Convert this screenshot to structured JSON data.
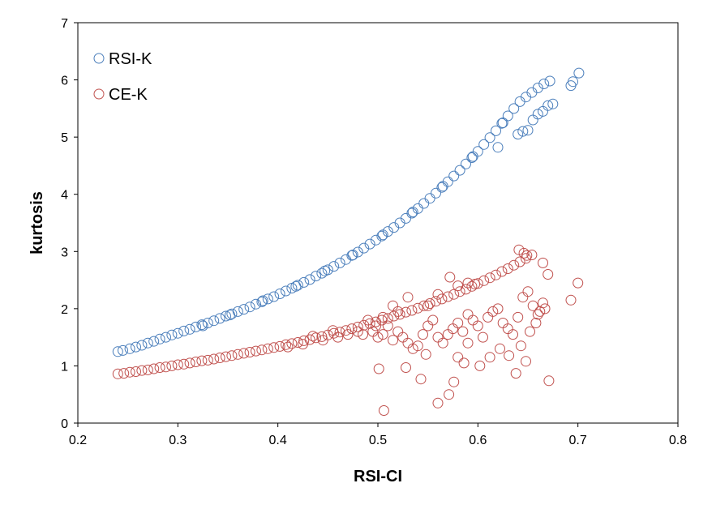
{
  "chart_data": {
    "type": "scatter",
    "title": "",
    "xlabel": "RSI-CI",
    "ylabel": "kurtosis",
    "xlim": [
      0.2,
      0.8
    ],
    "ylim": [
      0,
      7
    ],
    "xticks": [
      "0.2",
      "0.3",
      "0.4",
      "0.5",
      "0.6",
      "0.7",
      "0.8"
    ],
    "yticks": [
      "0",
      "1",
      "2",
      "3",
      "4",
      "5",
      "6",
      "7"
    ],
    "grid": false,
    "legend_position": "top-left",
    "series": [
      {
        "name": "RSI-K",
        "color": "#4a7ebb",
        "marker": "open-circle",
        "points": [
          [
            0.24,
            1.25
          ],
          [
            0.245,
            1.27
          ],
          [
            0.252,
            1.3
          ],
          [
            0.258,
            1.33
          ],
          [
            0.264,
            1.36
          ],
          [
            0.27,
            1.4
          ],
          [
            0.276,
            1.43
          ],
          [
            0.282,
            1.47
          ],
          [
            0.288,
            1.5
          ],
          [
            0.294,
            1.54
          ],
          [
            0.3,
            1.57
          ],
          [
            0.306,
            1.61
          ],
          [
            0.312,
            1.64
          ],
          [
            0.318,
            1.68
          ],
          [
            0.324,
            1.72
          ],
          [
            0.33,
            1.75
          ],
          [
            0.336,
            1.79
          ],
          [
            0.342,
            1.83
          ],
          [
            0.348,
            1.87
          ],
          [
            0.354,
            1.91
          ],
          [
            0.36,
            1.95
          ],
          [
            0.366,
            1.99
          ],
          [
            0.372,
            2.03
          ],
          [
            0.378,
            2.08
          ],
          [
            0.384,
            2.12
          ],
          [
            0.39,
            2.17
          ],
          [
            0.396,
            2.21
          ],
          [
            0.402,
            2.26
          ],
          [
            0.408,
            2.31
          ],
          [
            0.414,
            2.36
          ],
          [
            0.42,
            2.41
          ],
          [
            0.426,
            2.46
          ],
          [
            0.432,
            2.51
          ],
          [
            0.438,
            2.57
          ],
          [
            0.444,
            2.62
          ],
          [
            0.45,
            2.68
          ],
          [
            0.456,
            2.74
          ],
          [
            0.462,
            2.8
          ],
          [
            0.468,
            2.86
          ],
          [
            0.474,
            2.93
          ],
          [
            0.48,
            2.99
          ],
          [
            0.486,
            3.06
          ],
          [
            0.492,
            3.13
          ],
          [
            0.498,
            3.2
          ],
          [
            0.504,
            3.27
          ],
          [
            0.51,
            3.35
          ],
          [
            0.516,
            3.42
          ],
          [
            0.522,
            3.5
          ],
          [
            0.528,
            3.58
          ],
          [
            0.534,
            3.67
          ],
          [
            0.54,
            3.75
          ],
          [
            0.546,
            3.84
          ],
          [
            0.552,
            3.93
          ],
          [
            0.558,
            4.02
          ],
          [
            0.564,
            4.12
          ],
          [
            0.57,
            4.22
          ],
          [
            0.576,
            4.32
          ],
          [
            0.582,
            4.42
          ],
          [
            0.588,
            4.53
          ],
          [
            0.594,
            4.64
          ],
          [
            0.6,
            4.75
          ],
          [
            0.606,
            4.87
          ],
          [
            0.612,
            4.99
          ],
          [
            0.618,
            5.11
          ],
          [
            0.624,
            5.24
          ],
          [
            0.63,
            5.37
          ],
          [
            0.636,
            5.5
          ],
          [
            0.642,
            5.62
          ],
          [
            0.648,
            5.7
          ],
          [
            0.654,
            5.78
          ],
          [
            0.66,
            5.86
          ],
          [
            0.666,
            5.93
          ],
          [
            0.672,
            5.98
          ],
          [
            0.693,
            5.9
          ],
          [
            0.695,
            5.97
          ],
          [
            0.701,
            6.12
          ],
          [
            0.325,
            1.7
          ],
          [
            0.352,
            1.89
          ],
          [
            0.385,
            2.14
          ],
          [
            0.418,
            2.39
          ],
          [
            0.447,
            2.66
          ],
          [
            0.475,
            2.94
          ],
          [
            0.505,
            3.29
          ],
          [
            0.535,
            3.69
          ],
          [
            0.565,
            4.14
          ],
          [
            0.595,
            4.66
          ],
          [
            0.625,
            5.25
          ],
          [
            0.655,
            5.3
          ],
          [
            0.66,
            5.4
          ],
          [
            0.665,
            5.45
          ],
          [
            0.67,
            5.55
          ],
          [
            0.675,
            5.58
          ],
          [
            0.64,
            5.05
          ],
          [
            0.645,
            5.1
          ],
          [
            0.65,
            5.12
          ],
          [
            0.62,
            4.82
          ]
        ]
      },
      {
        "name": "CE-K",
        "color": "#c0504d",
        "marker": "open-circle",
        "points": [
          [
            0.24,
            0.86
          ],
          [
            0.246,
            0.87
          ],
          [
            0.252,
            0.89
          ],
          [
            0.258,
            0.9
          ],
          [
            0.264,
            0.92
          ],
          [
            0.27,
            0.93
          ],
          [
            0.276,
            0.95
          ],
          [
            0.282,
            0.97
          ],
          [
            0.288,
            0.98
          ],
          [
            0.294,
            1.0
          ],
          [
            0.3,
            1.02
          ],
          [
            0.306,
            1.03
          ],
          [
            0.312,
            1.05
          ],
          [
            0.318,
            1.07
          ],
          [
            0.324,
            1.09
          ],
          [
            0.33,
            1.1
          ],
          [
            0.336,
            1.12
          ],
          [
            0.342,
            1.14
          ],
          [
            0.348,
            1.16
          ],
          [
            0.354,
            1.18
          ],
          [
            0.36,
            1.2
          ],
          [
            0.366,
            1.22
          ],
          [
            0.372,
            1.24
          ],
          [
            0.378,
            1.26
          ],
          [
            0.384,
            1.28
          ],
          [
            0.39,
            1.3
          ],
          [
            0.396,
            1.32
          ],
          [
            0.402,
            1.34
          ],
          [
            0.408,
            1.37
          ],
          [
            0.414,
            1.39
          ],
          [
            0.42,
            1.41
          ],
          [
            0.426,
            1.44
          ],
          [
            0.432,
            1.46
          ],
          [
            0.438,
            1.49
          ],
          [
            0.444,
            1.51
          ],
          [
            0.45,
            1.54
          ],
          [
            0.456,
            1.57
          ],
          [
            0.462,
            1.59
          ],
          [
            0.468,
            1.62
          ],
          [
            0.474,
            1.65
          ],
          [
            0.48,
            1.68
          ],
          [
            0.486,
            1.71
          ],
          [
            0.492,
            1.74
          ],
          [
            0.498,
            1.77
          ],
          [
            0.504,
            1.8
          ],
          [
            0.51,
            1.83
          ],
          [
            0.516,
            1.87
          ],
          [
            0.522,
            1.9
          ],
          [
            0.528,
            1.94
          ],
          [
            0.534,
            1.97
          ],
          [
            0.54,
            2.01
          ],
          [
            0.546,
            2.05
          ],
          [
            0.552,
            2.09
          ],
          [
            0.558,
            2.13
          ],
          [
            0.564,
            2.17
          ],
          [
            0.57,
            2.21
          ],
          [
            0.576,
            2.25
          ],
          [
            0.582,
            2.3
          ],
          [
            0.588,
            2.34
          ],
          [
            0.594,
            2.39
          ],
          [
            0.6,
            2.44
          ],
          [
            0.606,
            2.49
          ],
          [
            0.612,
            2.54
          ],
          [
            0.618,
            2.59
          ],
          [
            0.624,
            2.65
          ],
          [
            0.63,
            2.7
          ],
          [
            0.636,
            2.76
          ],
          [
            0.642,
            2.82
          ],
          [
            0.648,
            2.88
          ],
          [
            0.654,
            2.94
          ],
          [
            0.485,
            1.55
          ],
          [
            0.495,
            1.6
          ],
          [
            0.5,
            1.5
          ],
          [
            0.505,
            1.55
          ],
          [
            0.51,
            1.7
          ],
          [
            0.515,
            1.45
          ],
          [
            0.52,
            1.6
          ],
          [
            0.525,
            1.5
          ],
          [
            0.53,
            1.4
          ],
          [
            0.535,
            1.3
          ],
          [
            0.54,
            1.35
          ],
          [
            0.545,
            1.55
          ],
          [
            0.55,
            1.7
          ],
          [
            0.555,
            1.8
          ],
          [
            0.56,
            1.5
          ],
          [
            0.565,
            1.4
          ],
          [
            0.57,
            1.55
          ],
          [
            0.575,
            1.65
          ],
          [
            0.58,
            1.75
          ],
          [
            0.585,
            1.6
          ],
          [
            0.59,
            1.9
          ],
          [
            0.595,
            1.8
          ],
          [
            0.6,
            1.7
          ],
          [
            0.605,
            1.5
          ],
          [
            0.61,
            1.85
          ],
          [
            0.615,
            1.95
          ],
          [
            0.62,
            2.0
          ],
          [
            0.625,
            1.75
          ],
          [
            0.63,
            1.65
          ],
          [
            0.635,
            1.55
          ],
          [
            0.64,
            1.85
          ],
          [
            0.645,
            2.2
          ],
          [
            0.65,
            2.3
          ],
          [
            0.655,
            2.05
          ],
          [
            0.66,
            1.9
          ],
          [
            0.665,
            2.1
          ],
          [
            0.501,
            0.95
          ],
          [
            0.506,
            0.22
          ],
          [
            0.528,
            0.97
          ],
          [
            0.543,
            0.77
          ],
          [
            0.548,
            1.2
          ],
          [
            0.56,
            0.35
          ],
          [
            0.571,
            0.5
          ],
          [
            0.576,
            0.72
          ],
          [
            0.58,
            1.15
          ],
          [
            0.586,
            1.05
          ],
          [
            0.59,
            1.4
          ],
          [
            0.602,
            1.0
          ],
          [
            0.612,
            1.15
          ],
          [
            0.622,
            1.3
          ],
          [
            0.631,
            1.18
          ],
          [
            0.638,
            0.87
          ],
          [
            0.643,
            1.35
          ],
          [
            0.648,
            1.08
          ],
          [
            0.652,
            1.6
          ],
          [
            0.658,
            1.75
          ],
          [
            0.662,
            1.95
          ],
          [
            0.667,
            2.0
          ],
          [
            0.671,
            0.74
          ],
          [
            0.693,
            2.15
          ],
          [
            0.7,
            2.45
          ],
          [
            0.67,
            2.6
          ],
          [
            0.665,
            2.8
          ],
          [
            0.641,
            3.03
          ],
          [
            0.646,
            2.97
          ],
          [
            0.649,
            2.93
          ],
          [
            0.59,
            2.45
          ],
          [
            0.597,
            2.43
          ],
          [
            0.572,
            2.55
          ],
          [
            0.58,
            2.4
          ],
          [
            0.56,
            2.25
          ],
          [
            0.55,
            2.05
          ],
          [
            0.53,
            2.2
          ],
          [
            0.52,
            1.95
          ],
          [
            0.515,
            2.05
          ],
          [
            0.505,
            1.85
          ],
          [
            0.498,
            1.7
          ],
          [
            0.49,
            1.8
          ],
          [
            0.48,
            1.6
          ],
          [
            0.47,
            1.55
          ],
          [
            0.46,
            1.5
          ],
          [
            0.455,
            1.62
          ],
          [
            0.445,
            1.45
          ],
          [
            0.435,
            1.52
          ],
          [
            0.425,
            1.38
          ],
          [
            0.41,
            1.33
          ]
        ]
      }
    ]
  }
}
